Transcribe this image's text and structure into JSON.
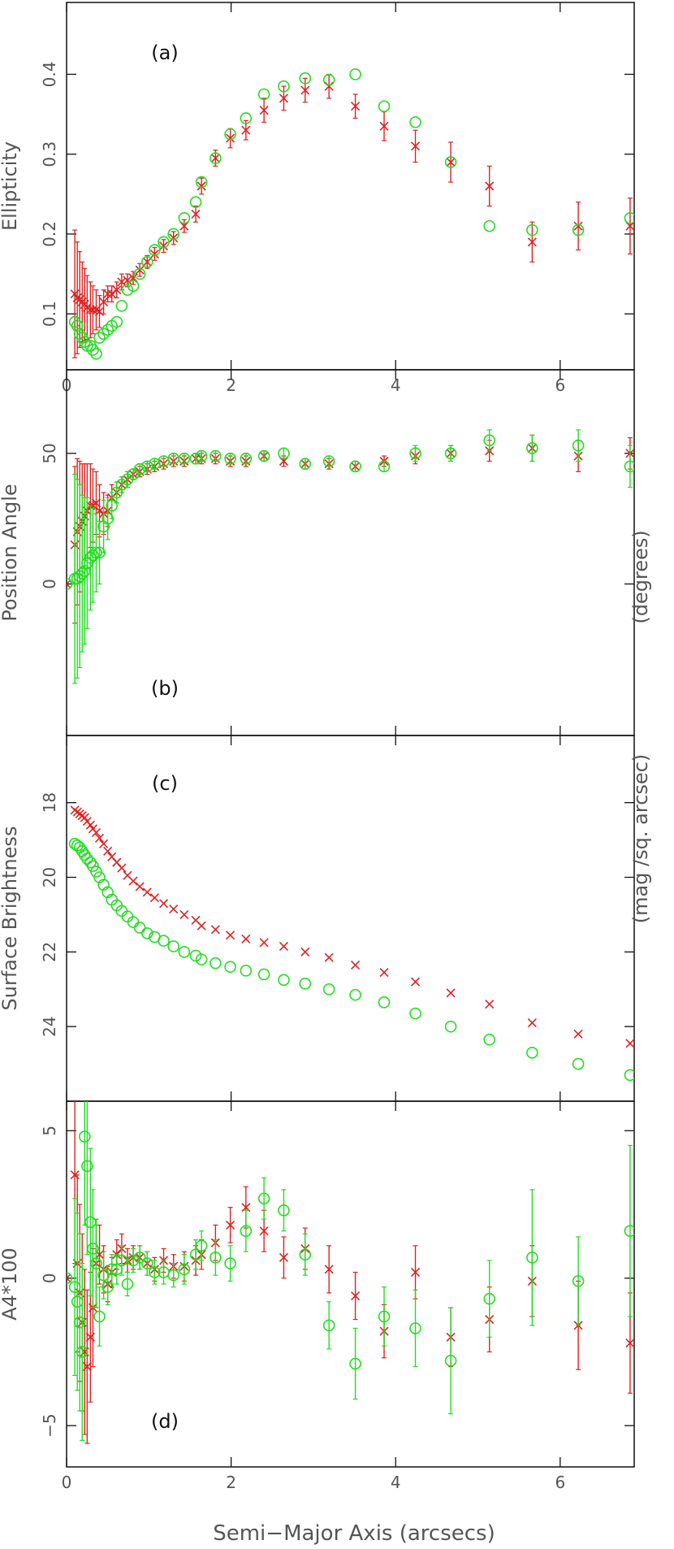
{
  "figure": {
    "x_axis_label": "Semi−Major Axis (arcsecs)",
    "right_unit_labels": [
      "(degrees)",
      "(mag /sq. arcsec)"
    ]
  },
  "series_styles": [
    {
      "marker": "x-cross",
      "color": "#dd2222"
    },
    {
      "marker": "open-circle",
      "color": "#22dd22"
    }
  ],
  "chart_data": [
    {
      "type": "scatter",
      "panel_label": "(a)",
      "ylabel": "Ellipticity",
      "xlim": [
        0,
        6.9
      ],
      "ylim": [
        0.03,
        0.49
      ],
      "yticks": [
        0.1,
        0.2,
        0.3,
        0.4
      ],
      "ytick_labels": [
        "0.1",
        "0.2",
        "0.3",
        "0.4"
      ],
      "xticks": [
        0,
        2,
        4,
        6
      ],
      "xtick_labels": [
        "0",
        "2",
        "4",
        "6"
      ],
      "grid": false,
      "series": [
        {
          "x": [
            0.1,
            0.13,
            0.16,
            0.19,
            0.22,
            0.25,
            0.29,
            0.32,
            0.36,
            0.4,
            0.45,
            0.5,
            0.55,
            0.61,
            0.67,
            0.74,
            0.81,
            0.89,
            0.98,
            1.07,
            1.18,
            1.3,
            1.43,
            1.57,
            1.64,
            1.81,
            1.99,
            2.18,
            2.4,
            2.64,
            2.9,
            3.19,
            3.51,
            3.86,
            4.24,
            4.67,
            5.14,
            5.66,
            6.22,
            6.85
          ],
          "y": [
            0.125,
            0.12,
            0.118,
            0.115,
            0.112,
            0.108,
            0.105,
            0.105,
            0.105,
            0.103,
            0.115,
            0.125,
            0.125,
            0.13,
            0.14,
            0.142,
            0.145,
            0.155,
            0.165,
            0.175,
            0.185,
            0.195,
            0.21,
            0.225,
            0.26,
            0.295,
            0.32,
            0.33,
            0.355,
            0.37,
            0.38,
            0.385,
            0.36,
            0.335,
            0.31,
            0.29,
            0.26,
            0.19,
            0.21,
            0.21
          ],
          "yerr": [
            0.08,
            0.07,
            0.06,
            0.05,
            0.045,
            0.04,
            0.035,
            0.03,
            0.025,
            0.02,
            0.015,
            0.01,
            0.01,
            0.01,
            0.01,
            0.008,
            0.008,
            0.008,
            0.008,
            0.008,
            0.008,
            0.008,
            0.008,
            0.01,
            0.01,
            0.01,
            0.012,
            0.012,
            0.015,
            0.015,
            0.015,
            0.015,
            0.015,
            0.018,
            0.02,
            0.025,
            0.025,
            0.025,
            0.03,
            0.035
          ]
        },
        {
          "x": [
            0.1,
            0.13,
            0.16,
            0.19,
            0.22,
            0.25,
            0.29,
            0.32,
            0.36,
            0.4,
            0.45,
            0.5,
            0.55,
            0.61,
            0.67,
            0.74,
            0.81,
            0.89,
            0.98,
            1.07,
            1.18,
            1.3,
            1.43,
            1.57,
            1.64,
            1.81,
            1.99,
            2.18,
            2.4,
            2.64,
            2.9,
            3.19,
            3.51,
            3.86,
            4.24,
            4.67,
            5.14,
            5.66,
            6.22,
            6.85
          ],
          "y": [
            0.09,
            0.085,
            0.075,
            0.07,
            0.065,
            0.06,
            0.06,
            0.055,
            0.05,
            0.07,
            0.075,
            0.08,
            0.085,
            0.09,
            0.11,
            0.13,
            0.135,
            0.15,
            0.165,
            0.18,
            0.19,
            0.2,
            0.22,
            0.24,
            0.265,
            0.295,
            0.325,
            0.345,
            0.375,
            0.385,
            0.395,
            0.393,
            0.4,
            0.36,
            0.34,
            0.29,
            0.21,
            0.205,
            0.205,
            0.22
          ]
        }
      ]
    },
    {
      "type": "scatter",
      "panel_label": "(b)",
      "ylabel": "Position Angle",
      "xlim": [
        0,
        6.9
      ],
      "ylim": [
        -58,
        82
      ],
      "yticks": [
        0,
        50
      ],
      "ytick_labels": [
        "0",
        "50"
      ],
      "xticks": [
        0,
        2,
        4,
        6
      ],
      "xtick_labels": [
        "",
        "",
        "",
        ""
      ],
      "grid": false,
      "series": [
        {
          "x": [
            0.0,
            0.1,
            0.13,
            0.16,
            0.19,
            0.22,
            0.25,
            0.29,
            0.32,
            0.36,
            0.4,
            0.45,
            0.5,
            0.55,
            0.61,
            0.67,
            0.74,
            0.81,
            0.89,
            0.98,
            1.07,
            1.18,
            1.3,
            1.43,
            1.57,
            1.64,
            1.81,
            1.99,
            2.18,
            2.4,
            2.64,
            2.9,
            3.19,
            3.51,
            3.86,
            4.24,
            4.67,
            5.14,
            5.66,
            6.22,
            6.85
          ],
          "y": [
            0,
            15,
            20,
            22,
            24,
            26,
            28,
            30,
            30,
            31,
            28,
            27,
            28,
            33,
            35,
            38,
            40,
            42,
            43,
            44,
            45,
            46,
            47,
            47,
            48,
            48,
            48,
            47,
            47,
            49,
            47,
            46,
            46,
            45,
            47,
            49,
            50,
            51,
            52,
            49,
            50
          ],
          "yerr": [
            0,
            30,
            28,
            25,
            22,
            20,
            18,
            16,
            14,
            12,
            10,
            8,
            6,
            5,
            4,
            3,
            3,
            2,
            2,
            2,
            2,
            2,
            2,
            2,
            2,
            2,
            2,
            2,
            2,
            2,
            2,
            2,
            2,
            2,
            2,
            3,
            3,
            4,
            5,
            6,
            6
          ]
        },
        {
          "x": [
            0.0,
            0.1,
            0.13,
            0.16,
            0.19,
            0.22,
            0.25,
            0.29,
            0.32,
            0.36,
            0.4,
            0.45,
            0.5,
            0.55,
            0.61,
            0.67,
            0.74,
            0.81,
            0.89,
            0.98,
            1.07,
            1.18,
            1.3,
            1.43,
            1.57,
            1.64,
            1.81,
            1.99,
            2.18,
            2.4,
            2.64,
            2.9,
            3.19,
            3.51,
            3.86,
            4.24,
            4.67,
            5.14,
            5.66,
            6.22,
            6.85
          ],
          "y": [
            0,
            2,
            2,
            3,
            4,
            5,
            8,
            10,
            11,
            12,
            12,
            22,
            25,
            30,
            35,
            38,
            40,
            42,
            44,
            45,
            46,
            47,
            48,
            48,
            48,
            49,
            49,
            48,
            48,
            49,
            50,
            46,
            47,
            45,
            45,
            50,
            50,
            55,
            52,
            53,
            45
          ],
          "yerr": [
            0,
            40,
            38,
            35,
            30,
            28,
            25,
            20,
            18,
            15,
            12,
            10,
            8,
            5,
            4,
            3,
            3,
            2,
            2,
            2,
            2,
            2,
            2,
            2,
            2,
            2,
            2,
            2,
            2,
            2,
            2,
            2,
            2,
            2,
            2,
            3,
            3,
            4,
            5,
            6,
            8
          ]
        }
      ]
    },
    {
      "type": "scatter",
      "panel_label": "(c)",
      "ylabel": "Surface Brightness",
      "xlim": [
        0,
        6.9
      ],
      "ylim": [
        26.0,
        16.2
      ],
      "y_inverted": true,
      "yticks": [
        18,
        20,
        22,
        24
      ],
      "ytick_labels": [
        "18",
        "20",
        "22",
        "24"
      ],
      "xticks": [
        0,
        2,
        4,
        6
      ],
      "xtick_labels": [
        "",
        "",
        "",
        ""
      ],
      "grid": false,
      "series": [
        {
          "x": [
            0.1,
            0.13,
            0.16,
            0.19,
            0.22,
            0.25,
            0.29,
            0.32,
            0.36,
            0.4,
            0.45,
            0.5,
            0.55,
            0.61,
            0.67,
            0.74,
            0.81,
            0.89,
            0.98,
            1.07,
            1.18,
            1.3,
            1.43,
            1.57,
            1.64,
            1.81,
            1.99,
            2.18,
            2.4,
            2.64,
            2.9,
            3.19,
            3.51,
            3.86,
            4.24,
            4.67,
            5.14,
            5.66,
            6.22,
            6.85
          ],
          "y": [
            18.2,
            18.25,
            18.3,
            18.35,
            18.4,
            18.5,
            18.6,
            18.7,
            18.8,
            18.95,
            19.1,
            19.3,
            19.45,
            19.6,
            19.75,
            19.95,
            20.1,
            20.25,
            20.4,
            20.55,
            20.7,
            20.85,
            21.0,
            21.15,
            21.3,
            21.4,
            21.55,
            21.65,
            21.75,
            21.85,
            22.0,
            22.15,
            22.35,
            22.55,
            22.8,
            23.1,
            23.4,
            23.9,
            24.2,
            24.45
          ]
        },
        {
          "x": [
            0.1,
            0.13,
            0.16,
            0.19,
            0.22,
            0.25,
            0.29,
            0.32,
            0.36,
            0.4,
            0.45,
            0.5,
            0.55,
            0.61,
            0.67,
            0.74,
            0.81,
            0.89,
            0.98,
            1.07,
            1.18,
            1.3,
            1.43,
            1.57,
            1.64,
            1.81,
            1.99,
            2.18,
            2.4,
            2.64,
            2.9,
            3.19,
            3.51,
            3.86,
            4.24,
            4.67,
            5.14,
            5.66,
            6.22,
            6.85
          ],
          "y": [
            19.1,
            19.15,
            19.2,
            19.3,
            19.4,
            19.5,
            19.6,
            19.7,
            19.85,
            20.0,
            20.2,
            20.4,
            20.6,
            20.75,
            20.9,
            21.05,
            21.2,
            21.35,
            21.5,
            21.6,
            21.7,
            21.85,
            22.0,
            22.1,
            22.2,
            22.3,
            22.4,
            22.5,
            22.6,
            22.75,
            22.85,
            23.0,
            23.15,
            23.35,
            23.65,
            24.0,
            24.35,
            24.7,
            25.0,
            25.3
          ]
        }
      ]
    },
    {
      "type": "scatter",
      "panel_label": "(d)",
      "ylabel": "A4*100",
      "xlim": [
        0,
        6.9
      ],
      "ylim": [
        -6.4,
        6.0
      ],
      "yticks": [
        -5,
        0,
        5
      ],
      "ytick_labels": [
        "−5",
        "0",
        "5"
      ],
      "xticks": [
        0,
        2,
        4,
        6
      ],
      "xtick_labels": [
        "0",
        "2",
        "4",
        "6"
      ],
      "grid": false,
      "series": [
        {
          "x": [
            0.0,
            0.1,
            0.13,
            0.16,
            0.19,
            0.22,
            0.25,
            0.29,
            0.32,
            0.36,
            0.4,
            0.45,
            0.5,
            0.55,
            0.61,
            0.67,
            0.74,
            0.81,
            0.89,
            0.98,
            1.07,
            1.18,
            1.3,
            1.43,
            1.57,
            1.64,
            1.81,
            1.99,
            2.18,
            2.4,
            2.64,
            2.9,
            3.19,
            3.51,
            3.86,
            4.24,
            4.67,
            5.14,
            5.66,
            6.22,
            6.85
          ],
          "y": [
            0,
            3.5,
            0.5,
            -0.5,
            -1.5,
            -2.5,
            -3.0,
            -2.0,
            -1.0,
            0.5,
            0.8,
            0.3,
            -0.2,
            0.2,
            0.8,
            1.0,
            0.6,
            0.7,
            0.7,
            0.5,
            0.3,
            0.6,
            0.4,
            0.4,
            0.6,
            0.8,
            1.2,
            1.8,
            2.4,
            1.6,
            0.7,
            1.0,
            0.3,
            -0.6,
            -1.8,
            0.2,
            -2.0,
            -1.4,
            -0.1,
            -1.6,
            -2.2
          ],
          "yerr": [
            0,
            3.0,
            3.0,
            3.0,
            3.0,
            2.8,
            2.6,
            2.2,
            2.0,
            1.5,
            1.0,
            0.8,
            0.6,
            0.5,
            0.5,
            0.5,
            0.4,
            0.4,
            0.4,
            0.4,
            0.4,
            0.4,
            0.4,
            0.5,
            0.5,
            0.5,
            0.6,
            0.6,
            0.7,
            0.7,
            0.7,
            0.7,
            0.8,
            0.8,
            0.9,
            0.9,
            1.0,
            1.1,
            1.2,
            1.5,
            1.7
          ]
        },
        {
          "x": [
            0.0,
            0.1,
            0.13,
            0.16,
            0.19,
            0.22,
            0.25,
            0.29,
            0.32,
            0.36,
            0.4,
            0.45,
            0.5,
            0.55,
            0.61,
            0.67,
            0.74,
            0.81,
            0.89,
            0.98,
            1.07,
            1.18,
            1.3,
            1.43,
            1.57,
            1.64,
            1.81,
            1.99,
            2.18,
            2.4,
            2.64,
            2.9,
            3.19,
            3.51,
            3.86,
            4.24,
            4.67,
            5.14,
            5.66,
            6.22,
            6.85
          ],
          "y": [
            0,
            -0.3,
            -0.8,
            -1.5,
            -2.5,
            4.8,
            3.8,
            1.9,
            1.0,
            0.5,
            -1.3,
            0.1,
            -0.3,
            0.3,
            0.3,
            0.6,
            -0.2,
            0.6,
            0.7,
            0.5,
            0.2,
            0.2,
            0.1,
            0.3,
            0.8,
            1.1,
            0.7,
            0.5,
            1.6,
            2.7,
            2.3,
            0.8,
            -1.6,
            -2.9,
            -1.3,
            -1.7,
            -2.8,
            -0.7,
            0.7,
            -0.1,
            1.6
          ],
          "yerr": [
            0,
            3.0,
            3.0,
            3.0,
            3.0,
            3.0,
            3.0,
            2.5,
            2.0,
            1.5,
            1.0,
            0.8,
            0.6,
            0.5,
            0.5,
            0.5,
            0.4,
            0.4,
            0.4,
            0.4,
            0.4,
            0.4,
            0.4,
            0.5,
            0.5,
            0.5,
            0.6,
            0.6,
            0.7,
            0.7,
            0.7,
            0.7,
            0.8,
            1.2,
            1.0,
            1.3,
            1.8,
            1.3,
            2.3,
            1.5,
            2.9
          ]
        }
      ]
    }
  ]
}
